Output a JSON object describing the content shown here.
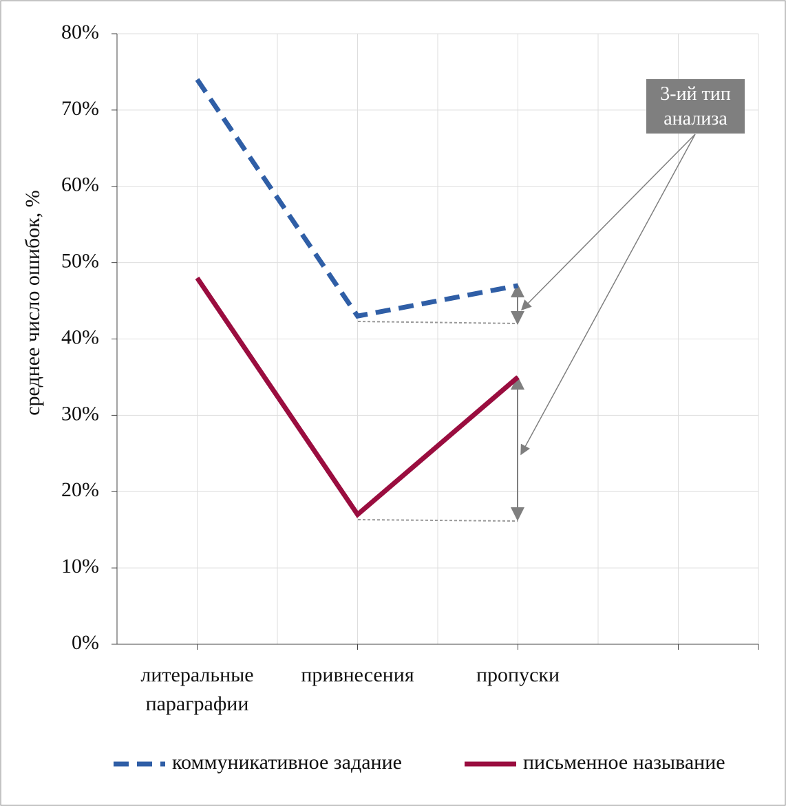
{
  "chart_data": {
    "type": "line",
    "y_label": "среднее число ошибок, %",
    "categories": [
      "литеральные параграфии",
      "привнесения",
      "пропуски",
      null
    ],
    "series": [
      {
        "name": "коммуникативное задание",
        "color": "#2f5ea6",
        "dash": true,
        "values": [
          74,
          43,
          47,
          null
        ]
      },
      {
        "name": "письменное называние",
        "color": "#9a0d3f",
        "dash": false,
        "values": [
          48,
          17,
          35,
          null
        ]
      }
    ],
    "ylim": [
      0,
      80
    ],
    "yticks": [
      {
        "value": 0,
        "label": "0%"
      },
      {
        "value": 10,
        "label": "10%"
      },
      {
        "value": 20,
        "label": "20%"
      },
      {
        "value": 30,
        "label": "30%"
      },
      {
        "value": 40,
        "label": "40%"
      },
      {
        "value": 50,
        "label": "50%"
      },
      {
        "value": 60,
        "label": "60%"
      },
      {
        "value": 70,
        "label": "70%"
      },
      {
        "value": 80,
        "label": "80%"
      }
    ],
    "grid": true,
    "legend": "bottom",
    "annotation": "3-ий тип анализа"
  }
}
